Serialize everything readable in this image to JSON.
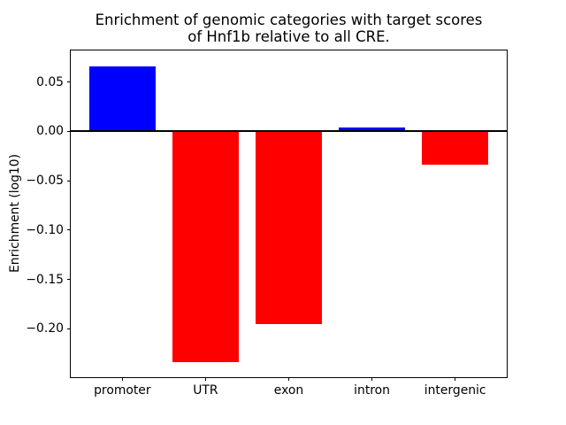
{
  "figure": {
    "title_line1": "Enrichment of genomic categories with target scores",
    "title_line2": "of Hnf1b relative to all CRE.",
    "ylabel": "Enrichment (log10)"
  },
  "chart_data": {
    "type": "bar",
    "title": "Enrichment of genomic categories with target scores of Hnf1b relative to all CRE.",
    "xlabel": "",
    "ylabel": "Enrichment (log10)",
    "categories": [
      "promoter",
      "UTR",
      "exon",
      "intron",
      "intergenic"
    ],
    "values": [
      0.066,
      -0.234,
      -0.195,
      0.004,
      -0.034
    ],
    "bar_colors": [
      "#0000ff",
      "#ff0000",
      "#ff0000",
      "#0000ff",
      "#ff0000"
    ],
    "positive_color": "#0000ff",
    "negative_color": "#ff0000",
    "background_color": "#ffffff",
    "axis_color": "#000000",
    "yticks": [
      0.05,
      0.0,
      -0.05,
      -0.1,
      -0.15,
      -0.2
    ],
    "ytick_labels": [
      "0.05",
      "0.00",
      "−0.05",
      "−0.10",
      "−0.15",
      "−0.20"
    ],
    "ylim": [
      -0.249,
      0.082
    ],
    "xlim": [
      -0.62,
      4.62
    ],
    "bar_width": 0.8,
    "zero_line": true,
    "grid": false,
    "legend": null
  }
}
